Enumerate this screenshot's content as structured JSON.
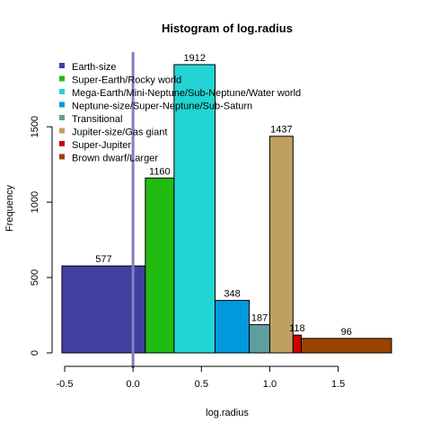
{
  "chart_data": {
    "type": "bar",
    "title": "Histogram of log.radius",
    "xlabel": "log.radius",
    "ylabel": "Frequency",
    "xlim": [
      -0.55,
      1.9
    ],
    "ylim": [
      0,
      2100
    ],
    "x_ticks": [
      -0.5,
      0.0,
      0.5,
      1.0,
      1.5
    ],
    "x_tick_labels": [
      "-0.5",
      "0.0",
      "0.5",
      "1.0",
      "1.5"
    ],
    "y_ticks": [
      0,
      500,
      1000,
      1500
    ],
    "y_tick_labels": [
      "0",
      "500",
      "1000",
      "1500"
    ],
    "reference_line": {
      "x": 0.0,
      "color": "#8080c0"
    },
    "bins": [
      {
        "x0": -0.52,
        "x1": 0.09,
        "value": 577,
        "label": "577",
        "color": "#4040a0",
        "category": "Earth-size"
      },
      {
        "x0": 0.09,
        "x1": 0.3,
        "value": 1160,
        "label": "1160",
        "color": "#22bb11",
        "category": "Super-Earth/Rocky world"
      },
      {
        "x0": 0.3,
        "x1": 0.6,
        "value": 1912,
        "label": "1912",
        "color": "#22d4d4",
        "category": "Mega-Earth/Mini-Neptune/Sub-Neptune/Water world"
      },
      {
        "x0": 0.6,
        "x1": 0.85,
        "value": 348,
        "label": "348",
        "color": "#0099dd",
        "category": "Neptune-size/Super-Neptune/Sub-Saturn"
      },
      {
        "x0": 0.85,
        "x1": 1.0,
        "value": 187,
        "label": "187",
        "color": "#5f9ea0",
        "category": "Transitional"
      },
      {
        "x0": 1.0,
        "x1": 1.17,
        "value": 1437,
        "label": "1437",
        "color": "#c0a060",
        "category": "Jupiter-size/Gas giant"
      },
      {
        "x0": 1.17,
        "x1": 1.23,
        "value": 118,
        "label": "118",
        "color": "#cc0000",
        "category": "Super-Jupiter"
      },
      {
        "x0": 1.23,
        "x1": 1.89,
        "value": 96,
        "label": "96",
        "color": "#994400",
        "category": "Brown dwarf/Larger"
      }
    ],
    "legend": {
      "placement": "top-left",
      "entries": [
        {
          "name": "Earth-size",
          "color": "#4040a0"
        },
        {
          "name": "Super-Earth/Rocky world",
          "color": "#22bb11"
        },
        {
          "name": "Mega-Earth/Mini-Neptune/Sub-Neptune/Water world",
          "color": "#22d4d4"
        },
        {
          "name": "Neptune-size/Super-Neptune/Sub-Saturn",
          "color": "#0099dd"
        },
        {
          "name": "Transitional",
          "color": "#5f9ea0"
        },
        {
          "name": "Jupiter-size/Gas giant",
          "color": "#c0a060"
        },
        {
          "name": "Super-Jupiter",
          "color": "#cc0000"
        },
        {
          "name": "Brown dwarf/Larger",
          "color": "#994400"
        }
      ]
    }
  }
}
